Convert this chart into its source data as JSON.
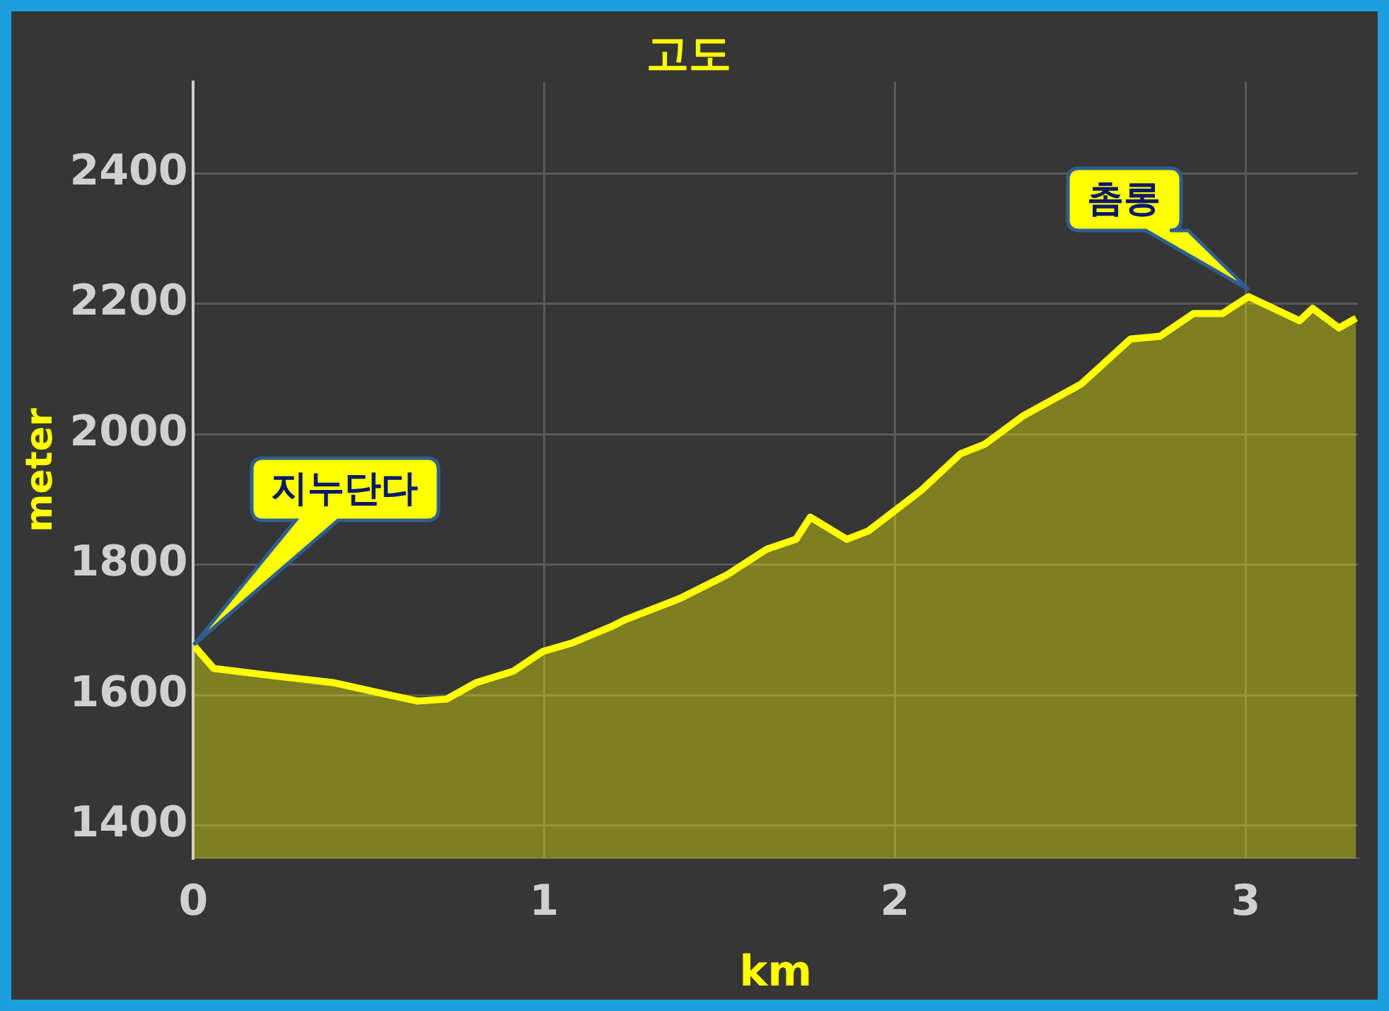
{
  "chart_data": {
    "type": "area",
    "title": "고도",
    "xlabel": "km",
    "ylabel": "meter",
    "x": [
      0,
      0.058,
      0.224,
      0.402,
      0.527,
      0.639,
      0.722,
      0.805,
      0.913,
      0.996,
      1.079,
      1.191,
      1.232,
      1.386,
      1.523,
      1.635,
      1.718,
      1.759,
      1.863,
      1.925,
      2.075,
      2.187,
      2.257,
      2.365,
      2.531,
      2.672,
      2.755,
      2.851,
      2.934,
      3.008,
      3.154,
      3.191,
      3.266,
      3.315
    ],
    "series": [
      {
        "color": "#ffff00",
        "values": [
          1677,
          1641,
          1630,
          1619,
          1604,
          1591,
          1594,
          1619,
          1637,
          1667,
          1680,
          1705,
          1716,
          1748,
          1785,
          1824,
          1839,
          1873,
          1839,
          1852,
          1914,
          1970,
          1985,
          2028,
          2077,
          2146,
          2150,
          2185,
          2185,
          2211,
          2174,
          2193,
          2163,
          2178
        ]
      }
    ],
    "xlim": [
      0,
      3.32
    ],
    "xticks": [
      0,
      1,
      2,
      3
    ],
    "ylim": [
      1350,
      2540
    ],
    "yticks": [
      1400,
      1600,
      1800,
      2000,
      2200,
      2400
    ],
    "grid": true,
    "legend": false,
    "marker": "none",
    "line_style": "solid",
    "annotations": [
      "지누단다",
      "촘롱"
    ]
  }
}
